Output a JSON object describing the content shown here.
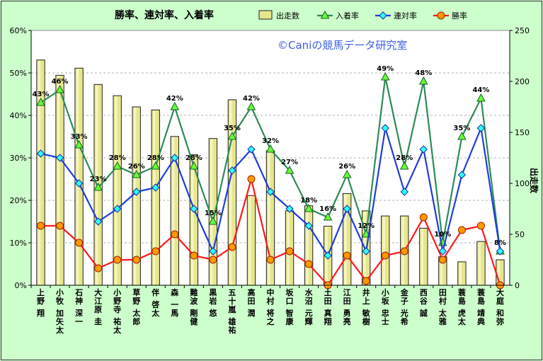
{
  "chart_data": {
    "type": "bar",
    "title": "勝率、連対率、入着率",
    "watermark": "©Caniの競馬データ研究室",
    "right_axis_label": "出走数",
    "categories": [
      "上野 翔",
      "小牧 加矢太",
      "石神 深一",
      "大江原 圭",
      "小野寺 祐太",
      "草野 太郎",
      "伴 啓太",
      "森 一馬",
      "難波 剛健",
      "黒岩 悠",
      "五十嵐 雄祐",
      "高田 潤",
      "中村 将之",
      "坂口 智康",
      "水沼 元輝",
      "土田 真翔",
      "江田 勇亮",
      "井上 敏樹",
      "小坂 忠士",
      "金子 光希",
      "西谷 誠",
      "田村 太雅",
      "蓑島 虎太",
      "蓑島 靖典",
      "大庭 和弥"
    ],
    "left_axis": {
      "ticks": [
        "0%",
        "10%",
        "20%",
        "30%",
        "40%",
        "50%",
        "60%"
      ],
      "ylim": [
        0,
        0.6
      ]
    },
    "right_axis": {
      "ticks": [
        "0",
        "50",
        "100",
        "150",
        "200",
        "250"
      ],
      "ylim": [
        0,
        250
      ]
    },
    "legend": [
      "出走数",
      "入着率",
      "連対率",
      "勝率"
    ],
    "legend_position": "top-right",
    "colors": {
      "bar": "#e6e68c",
      "in": "#2e8b57",
      "ren": "#1f3fd6",
      "win": "#ff1a1a",
      "plot_bg": "#ffffff"
    },
    "series": [
      {
        "name": "出走数",
        "axis": "right",
        "values": [
          221,
          206,
          213,
          197,
          186,
          175,
          172,
          146,
          128,
          144,
          182,
          88,
          132,
          73,
          78,
          58,
          90,
          73,
          68,
          68,
          56,
          28,
          23,
          43,
          25
        ]
      },
      {
        "name": "入着率",
        "axis": "left",
        "values": [
          0.43,
          0.46,
          0.33,
          0.23,
          0.28,
          0.26,
          0.28,
          0.42,
          0.28,
          0.15,
          0.35,
          0.42,
          0.32,
          0.27,
          0.18,
          0.16,
          0.26,
          0.12,
          0.49,
          0.28,
          0.48,
          0.1,
          0.35,
          0.44,
          0.08
        ]
      },
      {
        "name": "連対率",
        "axis": "left",
        "values": [
          0.31,
          0.3,
          0.24,
          0.15,
          0.18,
          0.22,
          0.23,
          0.3,
          0.18,
          0.08,
          0.27,
          0.32,
          0.22,
          0.18,
          0.14,
          0.07,
          0.18,
          0.08,
          0.37,
          0.22,
          0.32,
          0.08,
          0.26,
          0.37,
          0.08
        ]
      },
      {
        "name": "勝率",
        "axis": "left",
        "values": [
          0.14,
          0.14,
          0.1,
          0.04,
          0.06,
          0.06,
          0.08,
          0.12,
          0.07,
          0.06,
          0.09,
          0.25,
          0.06,
          0.08,
          0.05,
          0.0,
          0.07,
          0.01,
          0.07,
          0.08,
          0.16,
          0.06,
          0.13,
          0.14,
          0.0
        ]
      }
    ],
    "data_labels": [
      "43%",
      "46%",
      "33%",
      "23%",
      "28%",
      "26%",
      "28%",
      "42%",
      "28%",
      "15%",
      "35%",
      "42%",
      "32%",
      "27%",
      "18%",
      "16%",
      "26%",
      "12%",
      "49%",
      "28%",
      "48%",
      "10%",
      "35%",
      "44%",
      "8%"
    ]
  }
}
